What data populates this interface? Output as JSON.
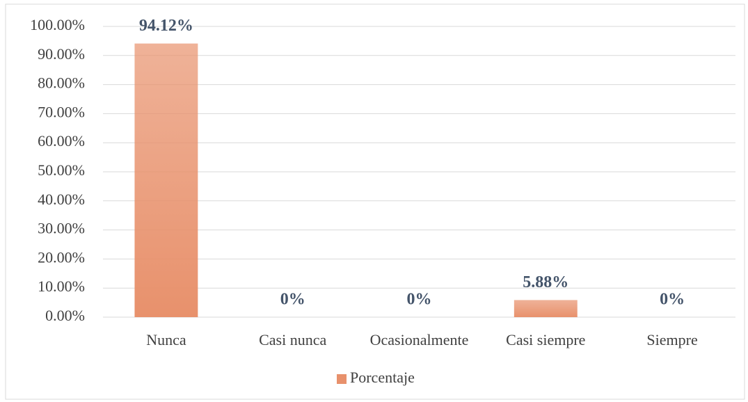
{
  "chart_data": {
    "type": "bar",
    "categories": [
      "Nunca",
      "Casi nunca",
      "Ocasionalmente",
      "Casi siempre",
      "Siempre"
    ],
    "series": [
      {
        "name": "Porcentaje",
        "color": "#e8916c",
        "values": [
          94.12,
          0,
          0,
          5.88,
          0
        ],
        "value_labels": [
          "94.12%",
          "0%",
          "0%",
          "5.88%",
          "0%"
        ]
      }
    ],
    "ylim": [
      0,
      100
    ],
    "yticks": [
      {
        "value": 0,
        "label": "0.00%"
      },
      {
        "value": 10,
        "label": "10.00%"
      },
      {
        "value": 20,
        "label": "20.00%"
      },
      {
        "value": 30,
        "label": "30.00%"
      },
      {
        "value": 40,
        "label": "40.00%"
      },
      {
        "value": 50,
        "label": "50.00%"
      },
      {
        "value": 60,
        "label": "60.00%"
      },
      {
        "value": 70,
        "label": "70.00%"
      },
      {
        "value": 80,
        "label": "80.00%"
      },
      {
        "value": 90,
        "label": "90.00%"
      },
      {
        "value": 100,
        "label": "100.00%"
      }
    ],
    "grid": true,
    "legend": "bottom"
  }
}
